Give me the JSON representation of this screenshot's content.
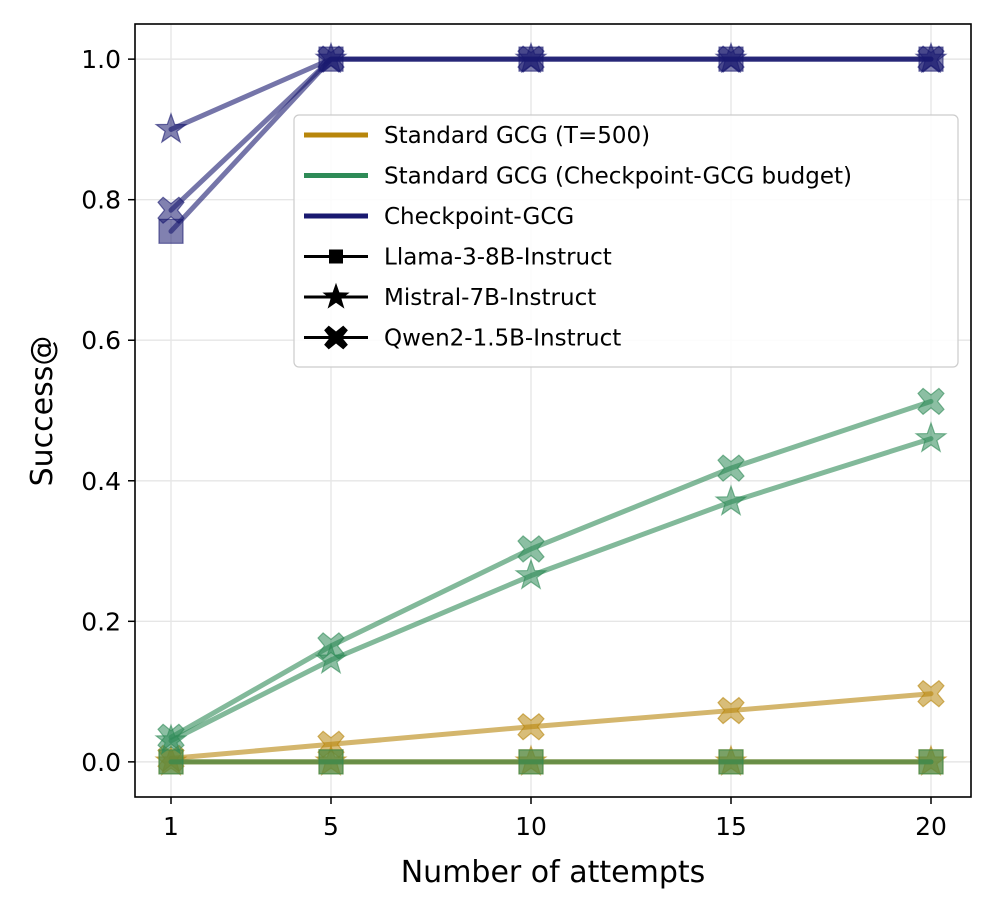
{
  "chart_data": {
    "type": "line",
    "title": "",
    "xlabel": "Number of attempts",
    "ylabel": "Success@",
    "x": [
      1,
      5,
      10,
      15,
      20
    ],
    "xlim": [
      0.1,
      21
    ],
    "ylim": [
      -0.05,
      1.05
    ],
    "xticks": [
      1,
      5,
      10,
      15,
      20
    ],
    "yticks": [
      0.0,
      0.2,
      0.4,
      0.6,
      0.8,
      1.0
    ],
    "xtick_labels": [
      "1",
      "5",
      "10",
      "15",
      "20"
    ],
    "ytick_labels": [
      "0.0",
      "0.2",
      "0.4",
      "0.6",
      "0.8",
      "1.0"
    ],
    "grid": true,
    "legend_position": "upper-right",
    "methods": [
      {
        "name": "Standard GCG (T=500)",
        "color": "#b8860b"
      },
      {
        "name": "Standard GCG (Checkpoint-GCG budget)",
        "color": "#2e8b57"
      },
      {
        "name": "Checkpoint-GCG",
        "color": "#191970"
      }
    ],
    "models": [
      {
        "name": "Llama-3-8B-Instruct",
        "marker": "square"
      },
      {
        "name": "Mistral-7B-Instruct",
        "marker": "star"
      },
      {
        "name": "Qwen2-1.5B-Instruct",
        "marker": "x-cross"
      }
    ],
    "series": [
      {
        "method": "Standard GCG (T=500)",
        "model": "Llama-3-8B-Instruct",
        "values": [
          0.0,
          0.0,
          0.0,
          0.0,
          0.0
        ]
      },
      {
        "method": "Standard GCG (T=500)",
        "model": "Mistral-7B-Instruct",
        "values": [
          0.0,
          0.0,
          0.0,
          0.0,
          0.0
        ]
      },
      {
        "method": "Standard GCG (T=500)",
        "model": "Qwen2-1.5B-Instruct",
        "values": [
          0.005,
          0.025,
          0.05,
          0.073,
          0.097
        ]
      },
      {
        "method": "Standard GCG (Checkpoint-GCG budget)",
        "model": "Llama-3-8B-Instruct",
        "values": [
          0.0,
          0.0,
          0.0,
          0.0,
          0.0
        ]
      },
      {
        "method": "Standard GCG (Checkpoint-GCG budget)",
        "model": "Mistral-7B-Instruct",
        "values": [
          0.03,
          0.145,
          0.265,
          0.37,
          0.46
        ]
      },
      {
        "method": "Standard GCG (Checkpoint-GCG budget)",
        "model": "Qwen2-1.5B-Instruct",
        "values": [
          0.035,
          0.165,
          0.303,
          0.418,
          0.513
        ]
      },
      {
        "method": "Checkpoint-GCG",
        "model": "Llama-3-8B-Instruct",
        "values": [
          0.755,
          1.0,
          1.0,
          1.0,
          1.0
        ]
      },
      {
        "method": "Checkpoint-GCG",
        "model": "Mistral-7B-Instruct",
        "values": [
          0.9,
          1.0,
          1.0,
          1.0,
          1.0
        ]
      },
      {
        "method": "Checkpoint-GCG",
        "model": "Qwen2-1.5B-Instruct",
        "values": [
          0.785,
          1.0,
          1.0,
          1.0,
          1.0
        ]
      }
    ]
  }
}
